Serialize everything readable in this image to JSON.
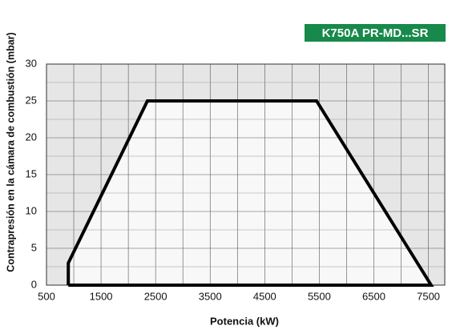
{
  "chart_data": {
    "type": "line",
    "badge": "K750A PR-MD...SR",
    "xlabel": "Potencia (kW)",
    "ylabel": "Contrapresión en la cámara de combustión (mbar)",
    "x": [
      900,
      900,
      2350,
      5450,
      7550,
      900
    ],
    "series": [
      {
        "color": "#000000",
        "values": [
          0,
          3,
          25,
          25,
          0,
          0
        ]
      }
    ],
    "xlim": [
      500,
      7800
    ],
    "xticks": [
      500,
      1500,
      2500,
      3500,
      4500,
      5500,
      6500,
      7500
    ],
    "ylim": [
      0,
      30
    ],
    "yticks": [
      0,
      5,
      10,
      15,
      20,
      25,
      30
    ],
    "grid": true
  }
}
